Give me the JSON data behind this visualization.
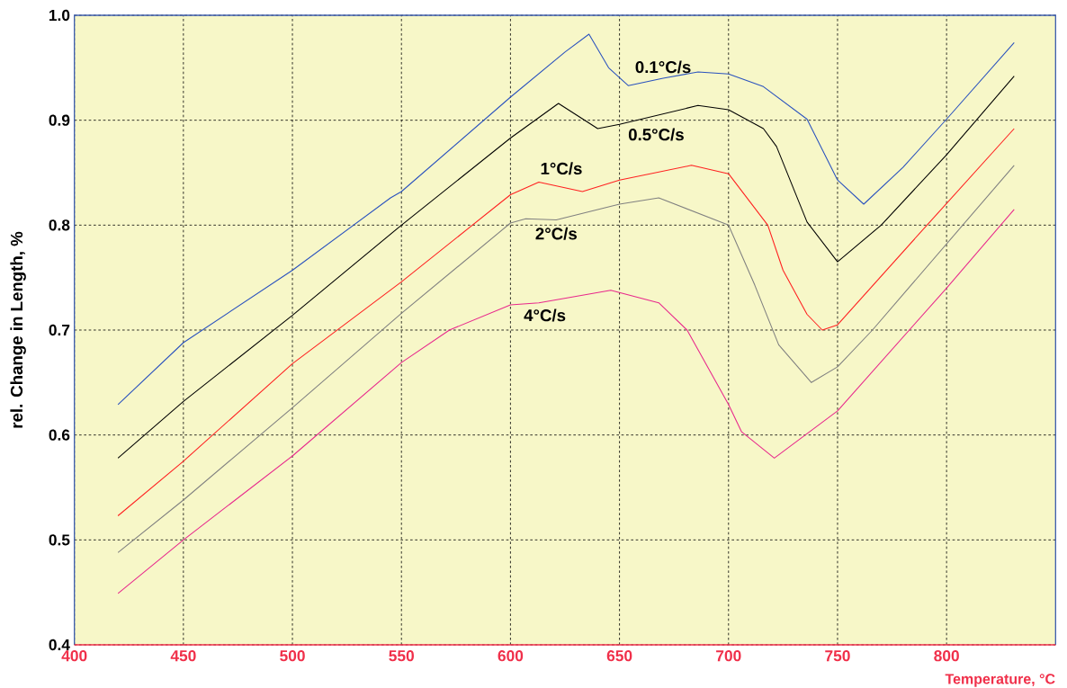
{
  "chart_data": {
    "type": "line",
    "xlabel": "Temperature, °C",
    "ylabel": "rel. Change in Length, %",
    "xlim": [
      400,
      850
    ],
    "ylim": [
      0.4,
      1.0
    ],
    "xticks": [
      400,
      450,
      500,
      550,
      600,
      650,
      700,
      750,
      800
    ],
    "yticks": [
      0.4,
      0.5,
      0.6,
      0.7,
      0.8,
      0.9,
      {
        "value": 1,
        "label": "1.0"
      }
    ],
    "grid": true,
    "series": [
      {
        "name": "0.1°C/s",
        "color": "#2a52be",
        "x": [
          420,
          450,
          500,
          545,
          550,
          600,
          625,
          636,
          645,
          654,
          670,
          686,
          700,
          716,
          736,
          750,
          762,
          780,
          800,
          831
        ],
        "values": [
          0.629,
          0.688,
          0.757,
          0.826,
          0.832,
          0.922,
          0.965,
          0.982,
          0.95,
          0.933,
          0.94,
          0.946,
          0.944,
          0.932,
          0.901,
          0.843,
          0.82,
          0.855,
          0.901,
          0.974
        ]
      },
      {
        "name": "0.5°C/s",
        "color": "#000000",
        "x": [
          420,
          450,
          500,
          550,
          600,
          622,
          640,
          650,
          686,
          700,
          716,
          722,
          736,
          750,
          770,
          800,
          831
        ],
        "values": [
          0.578,
          0.632,
          0.714,
          0.8,
          0.883,
          0.916,
          0.892,
          0.896,
          0.914,
          0.91,
          0.892,
          0.875,
          0.803,
          0.765,
          0.8,
          0.867,
          0.942
        ]
      },
      {
        "name": "1°C/s",
        "color": "#ff2020",
        "x": [
          420,
          450,
          500,
          550,
          600,
          613,
          633,
          650,
          683,
          700,
          718,
          725,
          736,
          743,
          750,
          791,
          831
        ],
        "values": [
          0.523,
          0.575,
          0.668,
          0.746,
          0.829,
          0.841,
          0.832,
          0.843,
          0.857,
          0.849,
          0.8,
          0.757,
          0.715,
          0.7,
          0.705,
          0.8,
          0.892
        ]
      },
      {
        "name": "2°C/s",
        "color": "#808080",
        "x": [
          420,
          450,
          500,
          550,
          600,
          607,
          621,
          650,
          668,
          700,
          712,
          723,
          738,
          750,
          766,
          831
        ],
        "values": [
          0.488,
          0.538,
          0.626,
          0.716,
          0.802,
          0.806,
          0.805,
          0.82,
          0.826,
          0.8,
          0.743,
          0.686,
          0.65,
          0.665,
          0.7,
          0.857
        ]
      },
      {
        "name": "4°C/s",
        "color": "#e8288c",
        "x": [
          420,
          450,
          500,
          550,
          572,
          600,
          613,
          646,
          668,
          681,
          700,
          706,
          721,
          750,
          800,
          831
        ],
        "values": [
          0.449,
          0.5,
          0.58,
          0.669,
          0.7,
          0.724,
          0.726,
          0.738,
          0.726,
          0.7,
          0.629,
          0.603,
          0.578,
          0.623,
          0.74,
          0.815
        ]
      }
    ]
  }
}
